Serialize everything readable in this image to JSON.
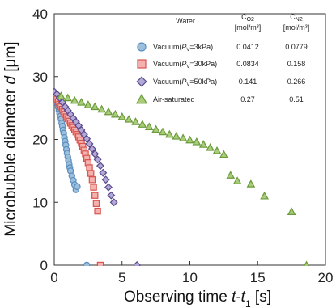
{
  "chart_data": {
    "type": "scatter",
    "xlabel_text": "Observing time ",
    "xlabel_math": "t-t",
    "xlabel_sub": "1",
    "xlabel_unit": " [s]",
    "ylabel_text": "Microbubble diameter ",
    "ylabel_math": "d",
    "ylabel_unit": " [μm]",
    "xlim": [
      0,
      20
    ],
    "ylim": [
      0,
      40
    ],
    "xticks": [
      "0",
      "5",
      "10",
      "15",
      "20"
    ],
    "yticks": [
      "0",
      "10",
      "20",
      "30",
      "40"
    ],
    "legend": {
      "header_medium": "Water",
      "header_co2_top": "C",
      "header_co2_sub": "O2",
      "header_co2_unit": "[mol/m³]",
      "header_cn2_top": "C",
      "header_cn2_sub": "N2",
      "header_cn2_unit": "[mol/m³]",
      "rows": [
        {
          "label_pre": "Vacuum(",
          "label_p": "P",
          "label_sub": "V",
          "label_post": "=3kPa)",
          "co2": "0.0412",
          "cn2": "0.0779"
        },
        {
          "label_pre": "Vacuum(",
          "label_p": "P",
          "label_sub": "V",
          "label_post": "=30kPa)",
          "co2": "0.0834",
          "cn2": "0.158"
        },
        {
          "label_pre": "Vacuum(",
          "label_p": "P",
          "label_sub": "V",
          "label_post": "=50kPa)",
          "co2": "0.141",
          "cn2": "0.266"
        },
        {
          "label_pre": "Air-saturated",
          "label_p": "",
          "label_sub": "",
          "label_post": "",
          "co2": "0.27",
          "cn2": "0.51"
        }
      ]
    },
    "series": [
      {
        "name": "Vacuum(PV=3kPa)",
        "marker": "circle",
        "color": "#5b8fbf",
        "fill": "#9cbfdc",
        "x": [
          0.0,
          0.05,
          0.1,
          0.15,
          0.2,
          0.25,
          0.3,
          0.35,
          0.4,
          0.45,
          0.5,
          0.55,
          0.6,
          0.65,
          0.7,
          0.75,
          0.8,
          0.85,
          0.9,
          0.95,
          1.0,
          1.05,
          1.1,
          1.15,
          1.2,
          1.3,
          1.4,
          1.5,
          1.6,
          1.7,
          2.4
        ],
        "y": [
          27.3,
          27.0,
          26.7,
          26.3,
          26.0,
          25.6,
          25.1,
          24.6,
          24.1,
          23.7,
          23.2,
          22.6,
          22.1,
          21.5,
          21.0,
          20.3,
          19.7,
          19.1,
          18.4,
          17.8,
          17.2,
          16.6,
          16.0,
          15.5,
          15.0,
          14.2,
          13.5,
          12.8,
          12.0,
          12.5,
          0.0
        ]
      },
      {
        "name": "Vacuum(PV=30kPa)",
        "marker": "square",
        "color": "#d9534f",
        "fill": "#f3b2ae",
        "x": [
          0.0,
          0.1,
          0.2,
          0.3,
          0.4,
          0.5,
          0.6,
          0.7,
          0.8,
          0.9,
          1.0,
          1.1,
          1.2,
          1.3,
          1.4,
          1.5,
          1.6,
          1.7,
          1.8,
          1.9,
          2.0,
          2.1,
          2.2,
          2.3,
          2.4,
          2.5,
          2.6,
          2.7,
          2.8,
          2.9,
          3.0,
          3.1,
          3.2,
          3.4
        ],
        "y": [
          27.0,
          26.7,
          26.4,
          26.0,
          25.6,
          25.2,
          24.8,
          24.4,
          24.0,
          23.6,
          23.3,
          22.9,
          22.6,
          22.2,
          21.9,
          21.5,
          21.2,
          20.8,
          20.4,
          19.9,
          19.4,
          18.9,
          18.3,
          17.7,
          17.0,
          16.3,
          15.5,
          14.6,
          13.6,
          12.4,
          11.1,
          9.8,
          8.6,
          0.0
        ]
      },
      {
        "name": "Vacuum(PV=50kPa)",
        "marker": "diamond",
        "color": "#5a4a8c",
        "fill": "#b4a8d6",
        "x": [
          0.0,
          0.2,
          0.4,
          0.6,
          0.8,
          1.0,
          1.2,
          1.4,
          1.6,
          1.8,
          2.0,
          2.2,
          2.4,
          2.6,
          2.8,
          3.0,
          3.2,
          3.4,
          3.6,
          3.8,
          4.0,
          4.2,
          4.4,
          6.1
        ],
        "y": [
          27.6,
          27.2,
          26.6,
          25.9,
          25.2,
          24.6,
          24.0,
          23.4,
          22.8,
          22.2,
          21.5,
          20.8,
          20.1,
          19.3,
          18.5,
          17.7,
          16.8,
          15.8,
          14.7,
          13.6,
          12.4,
          11.1,
          10.0,
          0.0
        ]
      },
      {
        "name": "Air-saturated",
        "marker": "triangle",
        "color": "#6a9a3a",
        "fill": "#a8cc78",
        "x": [
          0.5,
          1.0,
          1.5,
          2.0,
          2.5,
          3.0,
          3.5,
          4.0,
          4.5,
          5.0,
          5.5,
          6.0,
          6.5,
          7.0,
          7.5,
          8.0,
          8.5,
          9.0,
          9.5,
          10.0,
          10.5,
          11.0,
          11.5,
          12.0,
          12.5,
          13.0,
          13.5,
          14.5,
          15.5,
          17.5,
          18.6
        ],
        "y": [
          26.9,
          26.6,
          26.2,
          25.9,
          25.5,
          25.2,
          24.8,
          24.4,
          24.0,
          23.6,
          23.2,
          22.8,
          22.4,
          22.0,
          21.6,
          21.2,
          20.8,
          20.5,
          20.2,
          19.9,
          19.6,
          19.2,
          18.7,
          18.2,
          17.6,
          14.3,
          13.4,
          12.9,
          11.0,
          8.5,
          0.0
        ]
      }
    ]
  }
}
